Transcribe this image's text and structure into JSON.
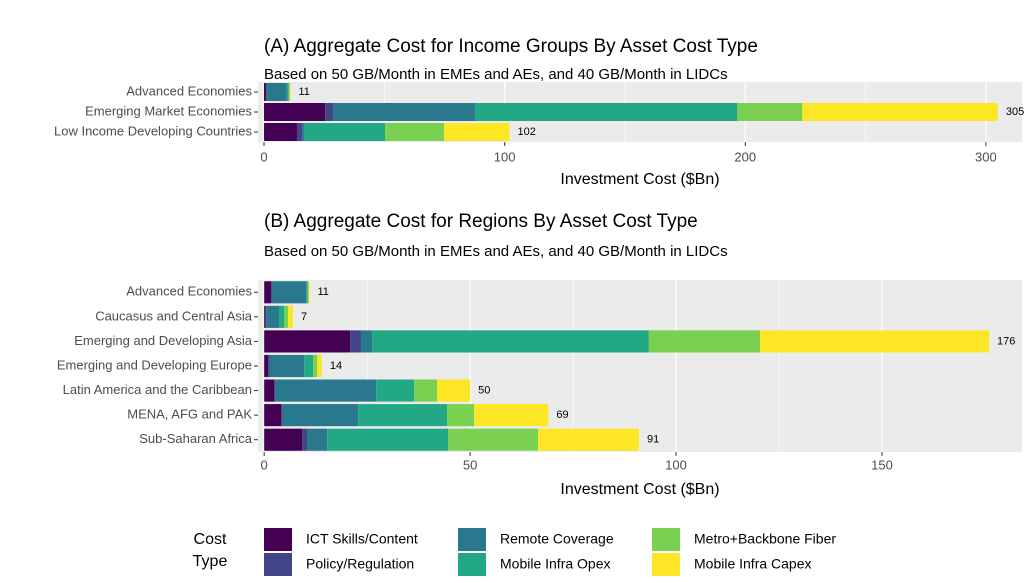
{
  "chart_data": [
    {
      "type": "stacked-barh",
      "title": "(A) Aggregate Cost for Income Groups By Asset Cost Type",
      "subtitle": "Based on 50 GB/Month in EMEs and AEs, and 40 GB/Month in LIDCs",
      "x_label": "Investment Cost ($Bn)",
      "categories": [
        "Advanced Economies",
        "Emerging Market Economies",
        "Low Income Developing Countries"
      ],
      "series": [
        {
          "name": "ICT Skills/Content",
          "color": "#440154",
          "values": [
            0.8,
            25.4,
            13.7
          ]
        },
        {
          "name": "Policy/Regulation",
          "color": "#414487",
          "values": [
            0.2,
            3.3,
            2.1
          ]
        },
        {
          "name": "Remote Coverage",
          "color": "#2a788e",
          "values": [
            8.5,
            59,
            0.8
          ]
        },
        {
          "name": "Mobile Infra Opex",
          "color": "#22a884",
          "values": [
            0.8,
            109,
            33.7
          ]
        },
        {
          "name": "Metro+Backbone Fiber",
          "color": "#7ad151",
          "values": [
            0.4,
            27,
            24.5
          ]
        },
        {
          "name": "Mobile Infra Capex",
          "color": "#fde725",
          "values": [
            0.3,
            81.3,
            27.2
          ]
        }
      ],
      "totals": [
        11,
        305,
        102
      ],
      "xlim": [
        -2.5,
        315
      ],
      "xticks": [
        0,
        100,
        200,
        300
      ],
      "grid": true
    },
    {
      "type": "stacked-barh",
      "title": "(B) Aggregate Cost for Regions By Asset Cost Type",
      "subtitle": "Based on 50 GB/Month in EMEs and AEs, and 40 GB/Month in LIDCs",
      "x_label": "Investment Cost ($Bn)",
      "categories": [
        "Advanced Economies",
        "Caucasus and Central Asia",
        "Emerging and Developing Asia",
        "Emerging and Developing Europe",
        "Latin America and the Caribbean",
        "MENA, AFG and PAK",
        "Sub-Saharan Africa"
      ],
      "series": [
        {
          "name": "ICT Skills/Content",
          "color": "#440154",
          "values": [
            1.7,
            0.3,
            20.9,
            1,
            2.4,
            4.1,
            9.2
          ]
        },
        {
          "name": "Policy/Regulation",
          "color": "#414487",
          "values": [
            0.3,
            0.2,
            2.6,
            0.3,
            0.4,
            0.4,
            1.2
          ]
        },
        {
          "name": "Remote Coverage",
          "color": "#2a788e",
          "values": [
            8.2,
            3.1,
            2.7,
            8.4,
            24.4,
            18.3,
            4.9
          ]
        },
        {
          "name": "Mobile Infra Opex",
          "color": "#22a884",
          "values": [
            0.4,
            1.3,
            67.2,
            2.2,
            9.2,
            21.6,
            29.4
          ]
        },
        {
          "name": "Metro+Backbone Fiber",
          "color": "#7ad151",
          "values": [
            0.2,
            0.9,
            27,
            1,
            5.6,
            6.6,
            21.8
          ]
        },
        {
          "name": "Mobile Infra Capex",
          "color": "#fde725",
          "values": [
            0.2,
            1.2,
            55.6,
            1.1,
            8,
            18,
            24.5
          ]
        }
      ],
      "totals": [
        11,
        7,
        176,
        14,
        50,
        69,
        91
      ],
      "xlim": [
        -1.5,
        184
      ],
      "xticks": [
        0,
        50,
        100,
        150
      ],
      "grid": true
    }
  ],
  "legend": {
    "title": [
      "Cost",
      "Type"
    ]
  }
}
